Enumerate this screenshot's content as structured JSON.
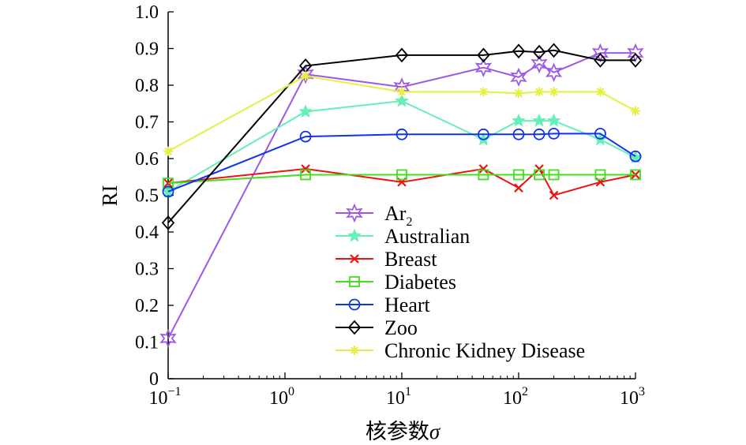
{
  "chart_data": {
    "type": "line",
    "title": "",
    "xlabel": "核参数σ",
    "xlabel_main": "核参数",
    "xlabel_symbol": "σ",
    "ylabel": "RI",
    "xscale": "log",
    "xlim": [
      0.1,
      1000
    ],
    "ylim": [
      0,
      1.0
    ],
    "x_ticks": [
      {
        "base": "10",
        "exp": "−1"
      },
      {
        "base": "10",
        "exp": "0"
      },
      {
        "base": "10",
        "exp": "1"
      },
      {
        "base": "10",
        "exp": "2"
      },
      {
        "base": "10",
        "exp": "3"
      }
    ],
    "y_ticks": [
      "0",
      "0.1",
      "0.2",
      "0.3",
      "0.4",
      "0.5",
      "0.6",
      "0.7",
      "0.8",
      "0.9",
      "1.0"
    ],
    "x": [
      0.1,
      1.5,
      10,
      50,
      100,
      150,
      200,
      500,
      1000
    ],
    "legend_position": "bottom-right",
    "series": [
      {
        "name": "Ar",
        "name_sub": "2",
        "color": "#9b59e6",
        "marker": "star-open",
        "x": [
          0.1,
          1.5,
          10,
          50,
          100,
          150,
          200,
          500,
          1000
        ],
        "values": [
          0.11,
          0.83,
          0.795,
          0.848,
          0.822,
          0.858,
          0.835,
          0.888,
          0.888
        ]
      },
      {
        "name": "Australian",
        "color": "#66f0b8",
        "marker": "star-filled",
        "x": [
          0.1,
          1.5,
          10,
          50,
          100,
          150,
          200,
          500,
          1000
        ],
        "values": [
          0.51,
          0.728,
          0.757,
          0.652,
          0.703,
          0.703,
          0.703,
          0.652,
          0.603
        ]
      },
      {
        "name": "Breast",
        "color": "#ee1111",
        "marker": "x",
        "x": [
          0.1,
          1.5,
          10,
          50,
          100,
          150,
          200,
          500,
          1000
        ],
        "values": [
          0.533,
          0.572,
          0.536,
          0.572,
          0.52,
          0.572,
          0.5,
          0.536,
          0.556
        ]
      },
      {
        "name": "Diabetes",
        "color": "#44dd22",
        "marker": "square",
        "x": [
          0.1,
          1.5,
          10,
          50,
          100,
          150,
          200,
          500,
          1000
        ],
        "values": [
          0.533,
          0.556,
          0.556,
          0.556,
          0.556,
          0.556,
          0.556,
          0.556,
          0.556
        ]
      },
      {
        "name": "Heart",
        "color": "#1133ee",
        "marker": "circle",
        "x": [
          0.1,
          1.5,
          10,
          50,
          100,
          150,
          200,
          500,
          1000
        ],
        "values": [
          0.51,
          0.66,
          0.666,
          0.666,
          0.666,
          0.666,
          0.668,
          0.668,
          0.606
        ]
      },
      {
        "name": "Zoo",
        "color": "#000000",
        "marker": "diamond",
        "x": [
          0.1,
          1.5,
          10,
          50,
          100,
          150,
          200,
          500,
          1000
        ],
        "values": [
          0.425,
          0.853,
          0.882,
          0.882,
          0.893,
          0.89,
          0.895,
          0.868,
          0.868
        ]
      },
      {
        "name": "Chronic Kidney Disease",
        "color": "#e4f042",
        "marker": "asterisk",
        "x": [
          0.1,
          1.5,
          10,
          50,
          100,
          150,
          200,
          500,
          1000
        ],
        "values": [
          0.62,
          0.825,
          0.782,
          0.782,
          0.778,
          0.782,
          0.782,
          0.782,
          0.73
        ]
      }
    ]
  }
}
